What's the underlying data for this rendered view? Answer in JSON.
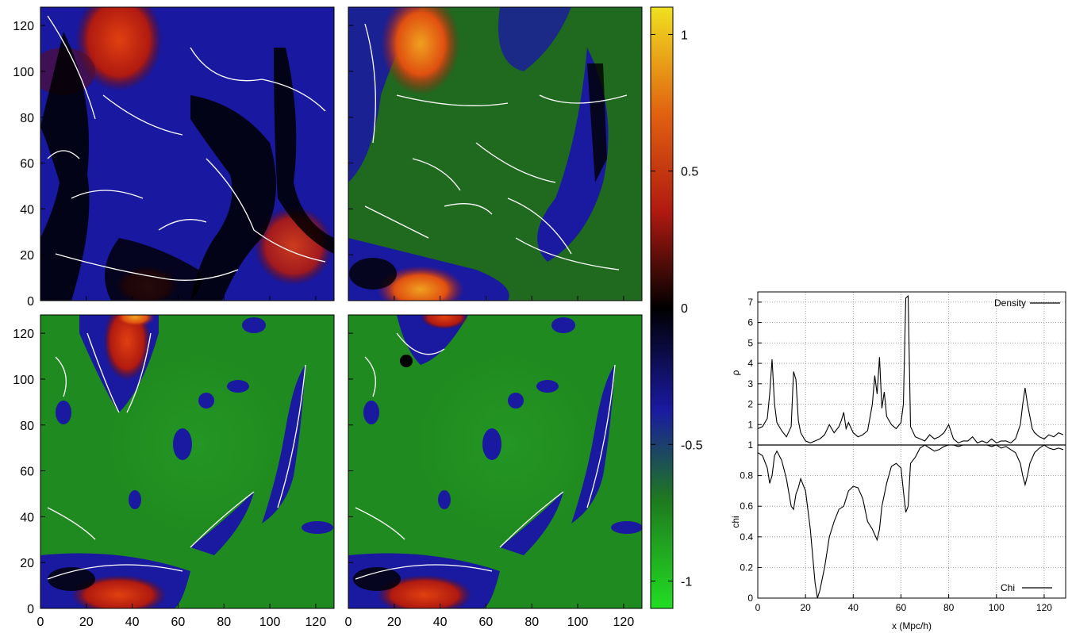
{
  "colorbar": {
    "tick_labels": [
      "1",
      "0.5",
      "0",
      "-0.5",
      "-1"
    ],
    "ticks": [
      1,
      0.5,
      0,
      -0.5,
      -1
    ],
    "range": [
      -1.1,
      1.1
    ],
    "colors": {
      "neg1": "#22dd22",
      "mid_neg": "#206020",
      "neg_half": "#1a1aa0",
      "zero": "#000000",
      "pos_half": "#d02010",
      "pos1": "#f0e020"
    }
  },
  "panels": {
    "axis_ticks": [
      "0",
      "20",
      "40",
      "60",
      "80",
      "100",
      "120"
    ],
    "contour_color": "#ffffff",
    "items": [
      {
        "id": "top-left",
        "base": "#1818a0"
      },
      {
        "id": "top-right",
        "base": "#1f6a1f"
      },
      {
        "id": "bottom-left",
        "base": "#1f8a1f"
      },
      {
        "id": "bottom-right",
        "base": "#1f8a1f"
      }
    ]
  },
  "chart_data": [
    {
      "type": "heatmap",
      "panels": 4,
      "x_ticks": [
        0,
        20,
        40,
        60,
        80,
        100,
        120
      ],
      "y_ticks": [
        0,
        20,
        40,
        60,
        80,
        100,
        120
      ],
      "xlim": [
        0,
        128
      ],
      "ylim": [
        0,
        128
      ],
      "colorbar_ticks": [
        -1,
        -0.5,
        0,
        0.5,
        1
      ]
    },
    {
      "type": "line",
      "ylabel": "ρ",
      "ylim": [
        0,
        7.5
      ],
      "xlim": [
        0,
        129
      ],
      "y_ticks": [
        1,
        2,
        3,
        4,
        5,
        6,
        7
      ],
      "grid": true,
      "legend": "top-right",
      "series": [
        {
          "name": "Density",
          "x": [
            0,
            2,
            4,
            5,
            6,
            7,
            8,
            10,
            12,
            14,
            15,
            16,
            17,
            18,
            20,
            22,
            24,
            26,
            28,
            30,
            32,
            34,
            35,
            36,
            37,
            38,
            40,
            42,
            44,
            46,
            48,
            49,
            50,
            51,
            52,
            53,
            54,
            56,
            58,
            60,
            61,
            62,
            63,
            64,
            66,
            68,
            70,
            72,
            74,
            76,
            78,
            80,
            82,
            84,
            86,
            88,
            90,
            92,
            94,
            96,
            98,
            100,
            102,
            104,
            106,
            108,
            110,
            111,
            112,
            113,
            114,
            115,
            116,
            118,
            120,
            122,
            124,
            126,
            128
          ],
          "y": [
            0.8,
            0.9,
            1.3,
            2.5,
            4.2,
            2.0,
            1.1,
            0.7,
            0.4,
            0.9,
            3.6,
            3.2,
            1.2,
            0.6,
            0.2,
            0.1,
            0.2,
            0.3,
            0.5,
            1.0,
            0.6,
            0.9,
            1.2,
            1.6,
            0.8,
            1.1,
            0.6,
            0.4,
            0.5,
            0.7,
            2.0,
            3.4,
            2.5,
            4.3,
            1.8,
            2.6,
            1.4,
            1.0,
            0.8,
            1.1,
            2.0,
            7.2,
            7.3,
            0.9,
            0.4,
            0.3,
            0.2,
            0.5,
            0.3,
            0.4,
            0.6,
            1.0,
            0.3,
            0.1,
            0.2,
            0.2,
            0.4,
            0.1,
            0.2,
            0.1,
            0.3,
            0.1,
            0.2,
            0.2,
            0.1,
            0.3,
            1.0,
            2.0,
            2.8,
            2.0,
            1.4,
            0.8,
            0.6,
            0.4,
            0.3,
            0.5,
            0.4,
            0.6,
            0.5
          ]
        }
      ]
    },
    {
      "type": "line",
      "ylabel": "chi",
      "xlabel": "x (Mpc/h)",
      "ylim": [
        0,
        1
      ],
      "xlim": [
        0,
        129
      ],
      "x_ticks": [
        0,
        20,
        40,
        60,
        80,
        100,
        120
      ],
      "y_ticks": [
        0,
        0.2,
        0.4,
        0.6,
        0.8,
        1
      ],
      "grid": true,
      "legend": "bottom-right",
      "series": [
        {
          "name": "Chi",
          "x": [
            0,
            2,
            4,
            5,
            6,
            7,
            8,
            10,
            12,
            14,
            15,
            16,
            17,
            18,
            20,
            22,
            24,
            25,
            26,
            28,
            30,
            32,
            34,
            36,
            38,
            40,
            42,
            44,
            46,
            48,
            50,
            51,
            52,
            54,
            56,
            58,
            60,
            61,
            62,
            63,
            64,
            66,
            68,
            70,
            72,
            74,
            76,
            78,
            80,
            82,
            84,
            86,
            88,
            90,
            92,
            94,
            96,
            98,
            100,
            102,
            104,
            106,
            108,
            110,
            111,
            112,
            113,
            114,
            116,
            118,
            120,
            122,
            124,
            126,
            128
          ],
          "y": [
            0.95,
            0.93,
            0.85,
            0.75,
            0.8,
            0.93,
            0.96,
            0.9,
            0.78,
            0.6,
            0.58,
            0.68,
            0.72,
            0.78,
            0.7,
            0.45,
            0.1,
            0.0,
            0.05,
            0.2,
            0.4,
            0.5,
            0.58,
            0.6,
            0.7,
            0.73,
            0.72,
            0.65,
            0.5,
            0.45,
            0.38,
            0.45,
            0.6,
            0.75,
            0.86,
            0.88,
            0.85,
            0.7,
            0.56,
            0.6,
            0.88,
            0.92,
            0.98,
            1.0,
            0.98,
            0.96,
            0.97,
            0.99,
            1.0,
            1.0,
            0.99,
            1.0,
            1.0,
            1.0,
            1.0,
            1.0,
            1.0,
            0.99,
            1.0,
            0.98,
            0.99,
            0.97,
            0.95,
            0.88,
            0.8,
            0.74,
            0.8,
            0.88,
            0.95,
            0.98,
            1.0,
            0.98,
            0.97,
            0.98,
            0.97
          ]
        }
      ]
    }
  ],
  "line_plot": {
    "top_y_tick_labels": [
      "1",
      "2",
      "3",
      "4",
      "5",
      "6",
      "7"
    ],
    "bottom_y_tick_labels": [
      "0",
      "0.2",
      "0.4",
      "0.6",
      "0.8",
      "1"
    ],
    "x_tick_labels": [
      "0",
      "20",
      "40",
      "60",
      "80",
      "100",
      "120"
    ],
    "top_ylabel": "ρ",
    "bottom_ylabel": "chi",
    "xlabel": "x (Mpc/h)",
    "legend_top": "Density",
    "legend_bottom": "Chi"
  }
}
